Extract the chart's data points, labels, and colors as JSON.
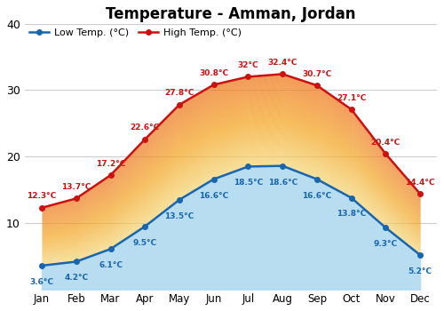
{
  "title": "Temperature - Amman, Jordan",
  "months": [
    "Jan",
    "Feb",
    "Mar",
    "Apr",
    "May",
    "Jun",
    "Jul",
    "Aug",
    "Sep",
    "Oct",
    "Nov",
    "Dec"
  ],
  "low_temps": [
    3.6,
    4.2,
    6.1,
    9.5,
    13.5,
    16.6,
    18.5,
    18.6,
    16.6,
    13.8,
    9.3,
    5.2
  ],
  "high_temps": [
    12.3,
    13.7,
    17.2,
    22.6,
    27.8,
    30.8,
    32.0,
    32.4,
    30.7,
    27.1,
    20.4,
    14.4
  ],
  "low_labels": [
    "3.6°C",
    "4.2°C",
    "6.1°C",
    "9.5°C",
    "13.5°C",
    "16.6°C",
    "18.5°C",
    "18.6°C",
    "16.6°C",
    "13.8°C",
    "9.3°C",
    "5.2°C"
  ],
  "high_labels": [
    "12.3°C",
    "13.7°C",
    "17.2°C",
    "22.6°C",
    "27.8°C",
    "30.8°C",
    "32°C",
    "32.4°C",
    "30.7°C",
    "27.1°C",
    "20.4°C",
    "14.4°C"
  ],
  "low_line_color": "#1865b0",
  "high_line_color": "#cc1111",
  "fill_orange": "#f5a623",
  "fill_yellow": "#f5d87a",
  "fill_blue": "#b8ddf0",
  "ylim": [
    0,
    40
  ],
  "yticks": [
    10,
    20,
    30,
    40
  ],
  "background_color": "#ffffff",
  "grid_color": "#cccccc",
  "title_fontsize": 12,
  "legend_fontsize": 8,
  "label_fontsize": 6.5
}
